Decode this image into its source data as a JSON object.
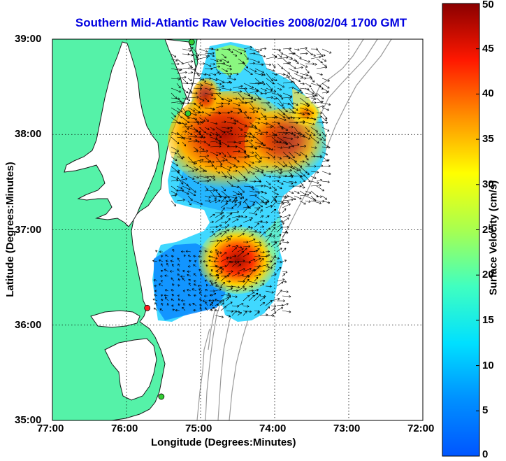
{
  "title": "Southern Mid-Atlantic Raw Velocities 2008/02/04 1700 GMT",
  "map": {
    "xlabel": "Longitude (Degrees:Minutes)",
    "ylabel": "Latitude (Degrees:Minutes)",
    "x_ticks": [
      "77:00",
      "76:00",
      "75:00",
      "74:00",
      "73:00",
      "72:00"
    ],
    "y_ticks": [
      "39:00",
      "38:00",
      "37:00",
      "36:00",
      "35:00"
    ],
    "lon_range": [
      -77,
      -72
    ],
    "lat_range": [
      35,
      39
    ],
    "grid": true
  },
  "colorbar": {
    "label": "Surface Velocity (cm/s)",
    "ticks": [
      "0",
      "5",
      "10",
      "15",
      "20",
      "25",
      "30",
      "35",
      "40",
      "45",
      "50"
    ],
    "range": [
      0,
      50
    ],
    "colormap": "jet"
  },
  "stations": [
    {
      "lon": -75.12,
      "lat": 38.97,
      "status": "ok",
      "color": "#33cc33"
    },
    {
      "lon": -75.17,
      "lat": 38.22,
      "status": "ok",
      "color": "#33cc33"
    },
    {
      "lon": -75.72,
      "lat": 36.18,
      "status": "down",
      "color": "#ff2020"
    },
    {
      "lon": -75.53,
      "lat": 35.25,
      "status": "ok",
      "color": "#33cc33"
    }
  ],
  "colors": {
    "land": "#55f2a8",
    "coast": "#1a1a1a",
    "bathymetry": "#9a9a9a",
    "title": "#0000e0"
  }
}
